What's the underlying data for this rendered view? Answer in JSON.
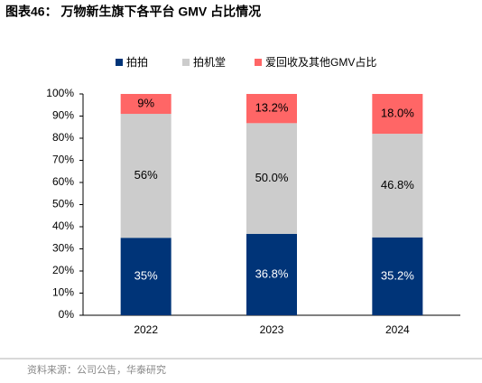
{
  "chart_data": {
    "type": "stacked_bar",
    "title": "图表46：  万物新生旗下各平台 GMV 占比情况",
    "source": "资料来源：公司公告，华泰研究",
    "categories": [
      "2022",
      "2023",
      "2024"
    ],
    "series": [
      {
        "name": "拍拍",
        "color": "#003478",
        "label_color": "#ffffff",
        "values": [
          35,
          36.8,
          35.2
        ],
        "value_labels": [
          "35%",
          "36.8%",
          "35.2%"
        ]
      },
      {
        "name": "拍机堂",
        "color": "#cccccc",
        "label_color": "#000000",
        "values": [
          56,
          50.0,
          46.8
        ],
        "value_labels": [
          "56%",
          "50.0%",
          "46.8%"
        ]
      },
      {
        "name": "爱回收及其他GMV占比",
        "color": "#ff6666",
        "label_color": "#000000",
        "values": [
          9,
          13.2,
          18.0
        ],
        "value_labels": [
          "9%",
          "13.2%",
          "18.0%"
        ]
      }
    ],
    "ylim": [
      0,
      100
    ],
    "yticks": [
      {
        "value": 0,
        "label": "0%"
      },
      {
        "value": 10,
        "label": "10%"
      },
      {
        "value": 20,
        "label": "20%"
      },
      {
        "value": 30,
        "label": "30%"
      },
      {
        "value": 40,
        "label": "40%"
      },
      {
        "value": 50,
        "label": "50%"
      },
      {
        "value": 60,
        "label": "60%"
      },
      {
        "value": 70,
        "label": "70%"
      },
      {
        "value": 80,
        "label": "80%"
      },
      {
        "value": 90,
        "label": "90%"
      },
      {
        "value": 100,
        "label": "100%"
      }
    ],
    "legend": "top"
  }
}
